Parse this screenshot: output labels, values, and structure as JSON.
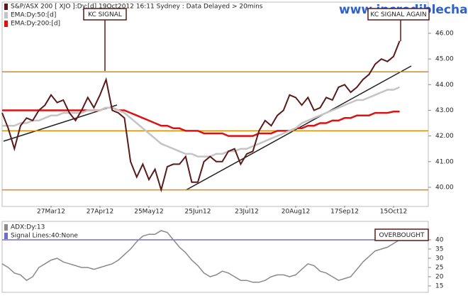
{
  "chart_data": [
    {
      "type": "line",
      "categories": [
        null,
        null,
        null,
        null,
        null,
        null,
        null,
        null,
        "27Mar12",
        null,
        null,
        null,
        null,
        null,
        null,
        null,
        "27Apr12",
        null,
        null,
        null,
        null,
        null,
        null,
        null,
        "25May12",
        null,
        null,
        null,
        null,
        null,
        null,
        null,
        "25Jun12",
        null,
        null,
        null,
        null,
        null,
        null,
        null,
        "23Jul12",
        null,
        null,
        null,
        null,
        null,
        null,
        null,
        "20Aug12",
        null,
        null,
        null,
        null,
        null,
        null,
        null,
        "17Sep12",
        null,
        null,
        null,
        null,
        null,
        null,
        null,
        "15Oct12",
        null
      ],
      "series": [
        {
          "name": "S&P/ASX 200 [ XJO ]:Dy:[d]  19Oct2012 16:11 Sydney : Data Delayed > 20mins",
          "color": "#5a1a1a",
          "values": [
            42.9,
            42.3,
            41.5,
            42.4,
            42.7,
            42.6,
            43.0,
            43.2,
            43.6,
            43.3,
            43.4,
            42.9,
            42.6,
            43.0,
            43.5,
            43.1,
            43.6,
            44.2,
            43.0,
            42.9,
            42.7,
            41.0,
            40.4,
            40.9,
            40.3,
            40.7,
            39.9,
            40.8,
            40.9,
            40.9,
            41.2,
            40.2,
            40.2,
            41.0,
            41.2,
            41.0,
            41.0,
            41.4,
            41.5,
            40.9,
            41.3,
            41.4,
            42.2,
            42.6,
            42.4,
            42.8,
            43.0,
            43.6,
            43.5,
            43.2,
            43.5,
            43.0,
            43.1,
            43.5,
            43.4,
            43.9,
            44.0,
            43.7,
            43.9,
            44.2,
            44.4,
            44.8,
            45.0,
            44.9,
            45.1,
            45.7
          ]
        },
        {
          "name": "EMA:Dy:50:[d]",
          "color": "#c4c4c4",
          "values": [
            42.4,
            42.4,
            42.4,
            42.5,
            42.5,
            42.6,
            42.6,
            42.7,
            42.8,
            42.8,
            42.9,
            42.9,
            42.9,
            42.9,
            43.0,
            43.0,
            43.0,
            43.1,
            43.1,
            43.0,
            42.9,
            42.7,
            42.5,
            42.3,
            42.1,
            41.9,
            41.7,
            41.6,
            41.5,
            41.4,
            41.3,
            41.3,
            41.2,
            41.2,
            41.2,
            41.3,
            41.3,
            41.4,
            41.4,
            41.5,
            41.5,
            41.6,
            41.7,
            41.8,
            41.9,
            42.0,
            42.1,
            42.2,
            42.3,
            42.5,
            42.6,
            42.7,
            42.8,
            42.9,
            43.0,
            43.1,
            43.2,
            43.3,
            43.4,
            43.4,
            43.5,
            43.6,
            43.7,
            43.8,
            43.8,
            43.9
          ]
        },
        {
          "name": "EMA:Dy:200:[d]",
          "color": "#dd1111",
          "values": [
            43.0,
            43.0,
            43.0,
            43.0,
            43.0,
            43.0,
            43.0,
            43.0,
            43.0,
            43.0,
            43.0,
            43.0,
            43.0,
            43.0,
            43.0,
            43.0,
            43.0,
            43.1,
            43.1,
            43.0,
            43.0,
            42.9,
            42.8,
            42.7,
            42.6,
            42.5,
            42.4,
            42.4,
            42.3,
            42.3,
            42.2,
            42.2,
            42.2,
            42.1,
            42.1,
            42.1,
            42.1,
            42.0,
            42.0,
            42.0,
            42.0,
            42.0,
            42.1,
            42.1,
            42.1,
            42.2,
            42.2,
            42.2,
            42.3,
            42.3,
            42.4,
            42.4,
            42.5,
            42.5,
            42.6,
            42.6,
            42.7,
            42.7,
            42.8,
            42.8,
            42.8,
            42.9,
            42.9,
            42.9,
            42.95,
            42.95
          ]
        }
      ],
      "levels": [
        44.5,
        42.2,
        39.9
      ],
      "level_color": "#e08a00",
      "ylim": [
        39.28,
        47.16
      ],
      "yticks": [
        {
          "value": 40,
          "label": "40.00"
        },
        {
          "value": 41,
          "label": "41.00"
        },
        {
          "value": 42,
          "label": "42.00"
        },
        {
          "value": 43,
          "label": "43.00"
        },
        {
          "value": 44,
          "label": "44.00"
        },
        {
          "value": 45,
          "label": "45.00"
        },
        {
          "value": 46,
          "label": "46.00"
        }
      ],
      "annotations": [
        "KC SIGNAL",
        "KC SIGNAL AGAIN"
      ],
      "watermark": "www.incrediblecharts.com"
    },
    {
      "type": "line",
      "series": [
        {
          "name": "ADX:Dy:13",
          "color": "#8a8a8a",
          "values": [
            27,
            25,
            22,
            21,
            18,
            20,
            25,
            27,
            29,
            30,
            28,
            27,
            26,
            25,
            25,
            24,
            25,
            26,
            27,
            29,
            32,
            35,
            39,
            42,
            43,
            43,
            45,
            44,
            40,
            36,
            33,
            29,
            26,
            22,
            20,
            21,
            23,
            22,
            20,
            18,
            18,
            17,
            17,
            18,
            20,
            21,
            21,
            20,
            21,
            24,
            27,
            26,
            23,
            22,
            20,
            18,
            19,
            20,
            24,
            28,
            31,
            34,
            35,
            36,
            38,
            40
          ]
        }
      ],
      "signal": {
        "name": "Signal Lines:40:None",
        "value": 40,
        "color": "#7070c0"
      },
      "ylim": [
        12.3,
        50
      ],
      "yticks": [
        15,
        20,
        25,
        30,
        35,
        40
      ],
      "annotations": [
        "OVERBOUGHT"
      ]
    }
  ]
}
